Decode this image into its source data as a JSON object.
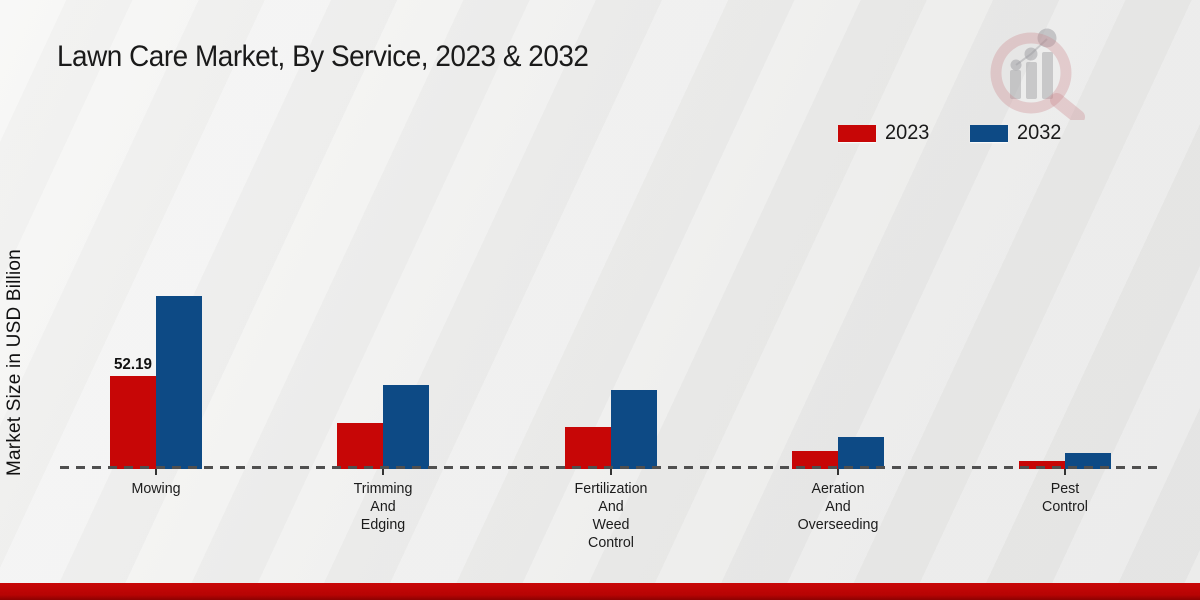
{
  "header": {
    "title": "Lawn Care Market, By Service, 2023 & 2032"
  },
  "chart_data": {
    "type": "bar",
    "title": "Lawn Care Market, By Service, 2023 & 2032",
    "xlabel": "",
    "ylabel": "Market Size in USD Billion",
    "categories": [
      "Mowing",
      "Trimming And Edging",
      "Fertilization And Weed Control",
      "Aeration And Overseeding",
      "Pest Control"
    ],
    "category_labels": [
      "Mowing",
      "Trimming\nAnd\nEdging",
      "Fertilization\nAnd\nWeed\nControl",
      "Aeration\nAnd\nOverseeding",
      "Pest\nControl"
    ],
    "series": [
      {
        "name": "2023",
        "color": "#c70606",
        "values": [
          52.19,
          25.8,
          23.6,
          10.1,
          4.5
        ]
      },
      {
        "name": "2032",
        "color": "#0d4a85",
        "values": [
          97.1,
          47.1,
          44.3,
          18.0,
          9.0
        ]
      }
    ],
    "data_labels": [
      {
        "series_index": 0,
        "category_index": 0,
        "text": "52.19"
      }
    ],
    "ylim": [
      0,
      110
    ],
    "grid": false,
    "baseline_style": "dashed",
    "legend_position": "top-right"
  },
  "colors": {
    "series_2023": "#c70606",
    "series_2032": "#0d4a85",
    "baseline": "#4f4f4f",
    "footer_bar": "#b70404",
    "title_text": "#1a1a1a"
  },
  "icons": {
    "logo": "market-research-magnifier-logo"
  }
}
